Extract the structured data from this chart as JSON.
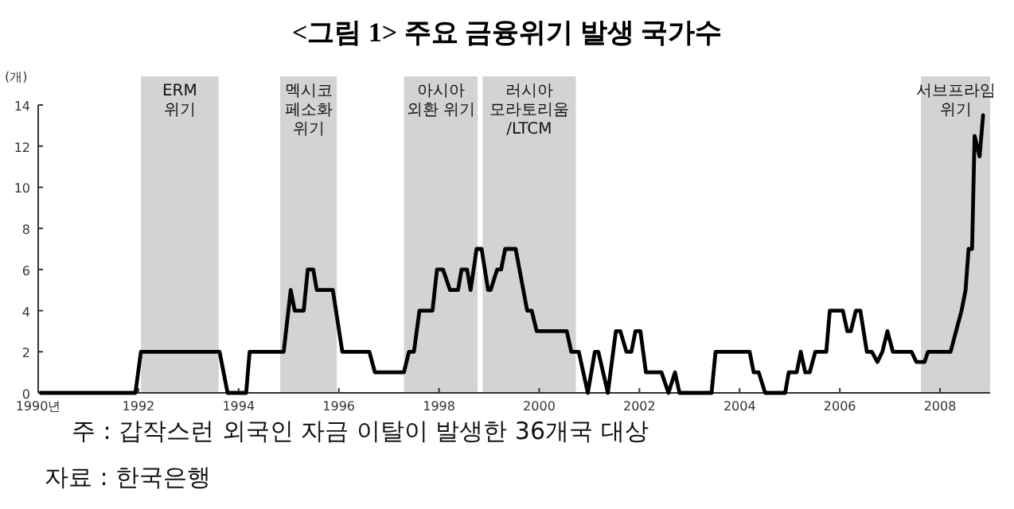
{
  "chart_data": {
    "type": "line",
    "title": "<그림 1> 주요 금융위기 발생 국가수",
    "ylabel": "(개)",
    "annotations": [
      "주 : 갑작스런 외국인 자금 이탈이 발생한 36개국 대상",
      "자료 : 한국은행"
    ],
    "x": [
      1990.05,
      1991.94,
      1992.05,
      1993.62,
      1993.78,
      1994.15,
      1994.22,
      1994.9,
      1995.04,
      1995.12,
      1995.3,
      1995.38,
      1995.49,
      1995.56,
      1995.88,
      1996.07,
      1996.61,
      1996.72,
      1997.3,
      1997.4,
      1997.5,
      1997.61,
      1997.87,
      1997.96,
      1998.08,
      1998.22,
      1998.38,
      1998.45,
      1998.56,
      1998.63,
      1998.75,
      1998.85,
      1998.98,
      1999.03,
      1999.16,
      1999.24,
      1999.32,
      1999.53,
      1999.76,
      1999.85,
      1999.95,
      2000.55,
      2000.64,
      2000.79,
      2000.97,
      2001.11,
      2001.18,
      2001.37,
      2001.53,
      2001.62,
      2001.74,
      2001.84,
      2001.92,
      2002.02,
      2002.13,
      2002.44,
      2002.58,
      2002.71,
      2002.8,
      2003.44,
      2003.52,
      2004.2,
      2004.28,
      2004.38,
      2004.51,
      2004.91,
      2004.98,
      2005.14,
      2005.22,
      2005.31,
      2005.4,
      2005.51,
      2005.73,
      2005.8,
      2006.06,
      2006.15,
      2006.22,
      2006.32,
      2006.41,
      2006.54,
      2006.64,
      2006.75,
      2006.85,
      2006.95,
      2007.06,
      2007.43,
      2007.53,
      2007.69,
      2007.76,
      2008.21,
      2008.43,
      2008.51,
      2008.57,
      2008.64,
      2008.69,
      2008.79,
      2008.86
    ],
    "series": [
      {
        "color": "#000000",
        "values": [
          0,
          0,
          2,
          2,
          0,
          0,
          2,
          2,
          5,
          4,
          4,
          6,
          6,
          5,
          5,
          2,
          2,
          1,
          1,
          2,
          2,
          4,
          4,
          6,
          6,
          5,
          5,
          6,
          6,
          5,
          7,
          7,
          5,
          5,
          6,
          6,
          7,
          7,
          4,
          4,
          3,
          3,
          2,
          2,
          0,
          2,
          2,
          0,
          3,
          3,
          2,
          2,
          3,
          3,
          1,
          1,
          0,
          1,
          0,
          0,
          2,
          2,
          1,
          1,
          0,
          0,
          1,
          1,
          2,
          1,
          1,
          2,
          2,
          4,
          4,
          3,
          3,
          4,
          4,
          2,
          2,
          1.5,
          2,
          3,
          2,
          2,
          1.5,
          1.5,
          2,
          2,
          4,
          5,
          7,
          7,
          12.5,
          11.5,
          13.5
        ]
      }
    ],
    "xlim": [
      1990,
      2009
    ],
    "xticks": [
      {
        "value": 1990,
        "label": "1990년"
      },
      1992,
      1994,
      1996,
      1998,
      2000,
      2002,
      2004,
      2006,
      2008
    ],
    "ylim": [
      0,
      14
    ],
    "yticks": [
      0,
      2,
      4,
      6,
      8,
      10,
      12,
      14
    ],
    "line_style": "solid",
    "bands": [
      {
        "axis": "x",
        "from": 1992.05,
        "to": 1993.6,
        "label": "ERM\n위기",
        "color": "#d3d3d3"
      },
      {
        "axis": "x",
        "from": 1994.83,
        "to": 1995.96,
        "label": "멕시코\n페소화\n위기",
        "color": "#d3d3d3"
      },
      {
        "axis": "x",
        "from": 1997.3,
        "to": 1998.77,
        "label": "아시아\n외환 위기",
        "color": "#d3d3d3"
      },
      {
        "axis": "x",
        "from": 1998.87,
        "to": 2000.73,
        "label": "러시아\n모라토리움\n/LTCM",
        "color": "#d3d3d3"
      },
      {
        "axis": "x",
        "from": 2007.62,
        "to": 2009,
        "label": "서브프라임\n위기",
        "color": "#d3d3d3"
      }
    ]
  }
}
